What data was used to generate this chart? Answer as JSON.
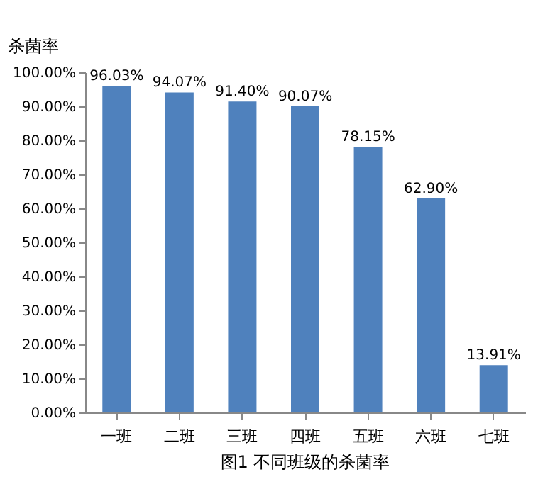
{
  "chart_data": {
    "type": "bar",
    "title": "图1 不同班级的杀菌率",
    "ylabel": "杀菌率",
    "categories": [
      "一班",
      "二班",
      "三班",
      "四班",
      "五班",
      "六班",
      "七班"
    ],
    "values": [
      96.03,
      94.07,
      91.4,
      90.07,
      78.15,
      62.9,
      13.91
    ],
    "value_labels": [
      "96.03%",
      "94.07%",
      "91.40%",
      "90.07%",
      "78.15%",
      "62.90%",
      "13.91%"
    ],
    "color": "#4f81bd",
    "ylim": [
      0,
      100
    ],
    "yticks": [
      {
        "value": 0,
        "label": "0.00%"
      },
      {
        "value": 10,
        "label": "10.00%"
      },
      {
        "value": 20,
        "label": "20.00%"
      },
      {
        "value": 30,
        "label": "30.00%"
      },
      {
        "value": 40,
        "label": "40.00%"
      },
      {
        "value": 50,
        "label": "50.00%"
      },
      {
        "value": 60,
        "label": "60.00%"
      },
      {
        "value": 70,
        "label": "70.00%"
      },
      {
        "value": 80,
        "label": "80.00%"
      },
      {
        "value": 90,
        "label": "90.00%"
      },
      {
        "value": 100,
        "label": "100.00%"
      }
    ],
    "grid": false
  }
}
